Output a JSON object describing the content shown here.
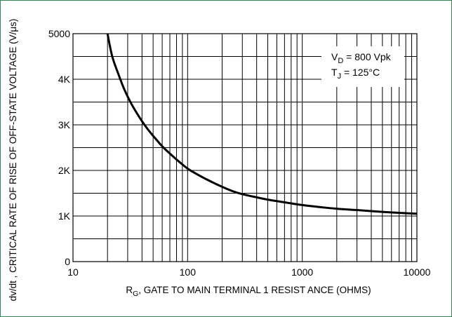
{
  "chart_data": {
    "type": "line",
    "xlabel": "R",
    "xlabel_sub": "G",
    "xlabel_rest": ", GATE TO MAIN TERMINAL 1 RESIST ANCE (OHMS)",
    "ylabel": "dv/dt , CRITICAL RATE OF RISE OF OFF-STATE VOLTAGE (V/μs)",
    "x_scale": "log",
    "xlim": [
      10,
      10000
    ],
    "ylim": [
      0,
      5000
    ],
    "grid": true,
    "xticks": [
      {
        "value": 10,
        "label": "10"
      },
      {
        "value": 100,
        "label": "100"
      },
      {
        "value": 1000,
        "label": "1000"
      },
      {
        "value": 10000,
        "label": "10000"
      }
    ],
    "yticks": [
      {
        "value": 0,
        "label": "0"
      },
      {
        "value": 1000,
        "label": "1K"
      },
      {
        "value": 2000,
        "label": "2K"
      },
      {
        "value": 3000,
        "label": "3K"
      },
      {
        "value": 4000,
        "label": "4K"
      },
      {
        "value": 5000,
        "label": "5000"
      }
    ],
    "annotations": [
      {
        "prefix": "V",
        "sub": "D",
        "suffix": " = 800 Vpk"
      },
      {
        "prefix": "T",
        "sub": "J",
        "suffix": " = 125°C"
      }
    ],
    "series": [
      {
        "x": [
          20,
          22,
          25,
          28,
          32,
          36,
          40,
          45,
          50,
          60,
          70,
          80,
          100,
          120,
          150,
          200,
          250,
          300,
          400,
          500,
          700,
          1000,
          1500,
          2000,
          3000,
          5000,
          7000,
          10000
        ],
        "y": [
          5000,
          4500,
          4100,
          3780,
          3480,
          3260,
          3080,
          2900,
          2760,
          2530,
          2370,
          2240,
          2040,
          1920,
          1790,
          1640,
          1540,
          1480,
          1410,
          1360,
          1300,
          1240,
          1190,
          1160,
          1130,
          1090,
          1070,
          1050
        ]
      }
    ]
  }
}
